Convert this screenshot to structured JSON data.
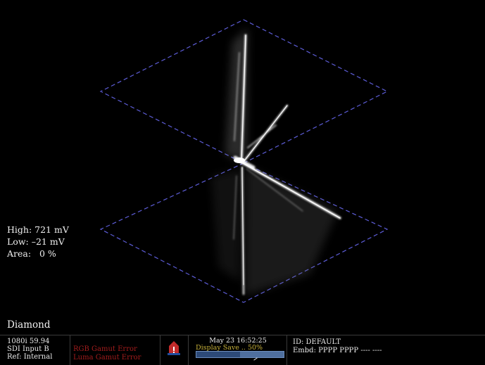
{
  "readouts": {
    "high": "High: 721 mV",
    "low": "Low: –21 mV",
    "area": "Area:   0 %"
  },
  "measurement_title": "Diamond",
  "status": {
    "format": "1080i 59.94",
    "input": "SDI Input B",
    "reference": "Ref: Internal",
    "errors": [
      "RGB Gamut Error",
      "Luma Gamut Error"
    ],
    "alarm_icon": "warning-icon",
    "clock": "May 23 16:52:25",
    "save_label": "Display Save .. 50%",
    "save_progress": 0.5,
    "id": "ID: DEFAULT",
    "embedded": "Embd: PPPP PPPP ---- ----"
  },
  "colors": {
    "background": "#000000",
    "graticule": "#5c5cd6",
    "trace": "#ffffff",
    "error_text": "#a41c1c",
    "save_text": "#c8b23a",
    "progress_bar": "#4f6f9e"
  }
}
